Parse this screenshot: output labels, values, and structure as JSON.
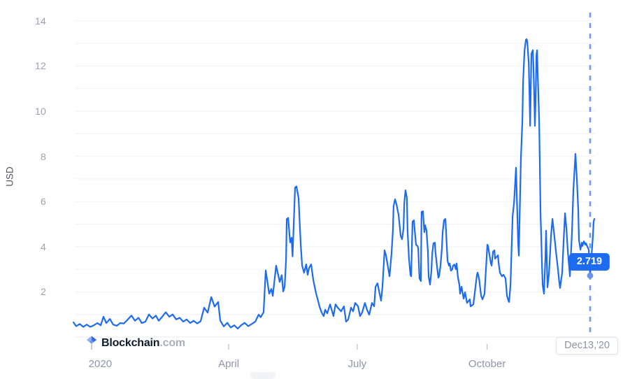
{
  "branding": {
    "brand": "Blockchain",
    "suffix": ".com"
  },
  "colors": {
    "line": "#1d6bf0",
    "tooltip_bg": "#1d6bf0",
    "tooltip_text": "#ffffff",
    "cursor_dashed_line": "#6f9cf3",
    "cursor_dot": "#6c92e8",
    "gridline": "#f1f2f5",
    "axis_line": "#e9ebef",
    "tick_mark": "#c9ccd4",
    "y_tick_text": "#9aa2b2",
    "x_tick_text": "#8d96a8",
    "y_axis_title_text": "#4e5766"
  },
  "chart_data": {
    "type": "line",
    "title": "",
    "ylabel": "USD",
    "xlabel": "",
    "legend": "none",
    "grid": "horizontal gridlines every 1 USD, labels every 2 USD",
    "ylim": [
      0,
      14.4
    ],
    "x_unit": "days since chart start (mid-December 2019); cursor day 366 = Dec 13 2020",
    "xlim_days": [
      0,
      369
    ],
    "y_ticks": [
      2,
      4,
      6,
      8,
      10,
      12,
      14
    ],
    "x_ticks": [
      {
        "label": "2020",
        "day": 19,
        "tick": false
      },
      {
        "label": "April",
        "day": 110,
        "tick": true
      },
      {
        "label": "July",
        "day": 201,
        "tick": true
      },
      {
        "label": "October",
        "day": 293,
        "tick": true
      }
    ],
    "cursor": {
      "day": 366,
      "value": 2.719,
      "value_label": "2.719",
      "date_label": "Dec13,'20"
    },
    "series": [
      {
        "name": "USD",
        "color": "#1d6bf0",
        "points": [
          [
            0,
            0.65
          ],
          [
            2,
            0.48
          ],
          [
            4.5,
            0.58
          ],
          [
            7,
            0.45
          ],
          [
            9.4,
            0.55
          ],
          [
            12,
            0.45
          ],
          [
            14.4,
            0.52
          ],
          [
            17,
            0.62
          ],
          [
            19.3,
            0.52
          ],
          [
            21.3,
            0.9
          ],
          [
            23.3,
            0.62
          ],
          [
            25.8,
            0.8
          ],
          [
            28.2,
            0.55
          ],
          [
            30.7,
            0.5
          ],
          [
            33.2,
            0.62
          ],
          [
            35.7,
            0.6
          ],
          [
            38.1,
            0.75
          ],
          [
            41.1,
            0.95
          ],
          [
            43.6,
            0.72
          ],
          [
            46.1,
            0.85
          ],
          [
            48.5,
            0.62
          ],
          [
            51,
            0.68
          ],
          [
            53.5,
            1.0
          ],
          [
            56,
            0.82
          ],
          [
            58.4,
            0.95
          ],
          [
            60.4,
            0.72
          ],
          [
            62.9,
            0.9
          ],
          [
            65.4,
            1.1
          ],
          [
            67.9,
            0.9
          ],
          [
            70.3,
            1.0
          ],
          [
            72.8,
            0.78
          ],
          [
            75.3,
            0.85
          ],
          [
            77.8,
            0.68
          ],
          [
            80.2,
            0.78
          ],
          [
            82.7,
            0.62
          ],
          [
            85.2,
            0.72
          ],
          [
            87.7,
            0.6
          ],
          [
            90.1,
            0.7
          ],
          [
            92.6,
            1.3
          ],
          [
            95.1,
            1.08
          ],
          [
            97.6,
            1.77
          ],
          [
            100,
            1.35
          ],
          [
            102.5,
            1.55
          ],
          [
            104,
            0.73
          ],
          [
            106.5,
            0.47
          ],
          [
            109,
            0.63
          ],
          [
            111.4,
            0.42
          ],
          [
            113.9,
            0.52
          ],
          [
            116.4,
            0.37
          ],
          [
            118.9,
            0.53
          ],
          [
            121.3,
            0.63
          ],
          [
            123.8,
            0.48
          ],
          [
            126.3,
            0.58
          ],
          [
            128.8,
            0.68
          ],
          [
            131.2,
            0.99
          ],
          [
            132.7,
            0.88
          ],
          [
            134.7,
            1.1
          ],
          [
            136.2,
            2.95
          ],
          [
            138.7,
            1.92
          ],
          [
            140.2,
            2.13
          ],
          [
            141.2,
            1.82
          ],
          [
            143.6,
            3.16
          ],
          [
            145.1,
            2.74
          ],
          [
            146.1,
            2.44
          ],
          [
            147.6,
            2.74
          ],
          [
            148.6,
            2.02
          ],
          [
            149.6,
            2.23
          ],
          [
            150.6,
            3.4
          ],
          [
            151.1,
            5.22
          ],
          [
            152.1,
            5.28
          ],
          [
            153.5,
            4.19
          ],
          [
            154.5,
            4.4
          ],
          [
            155.2,
            3.57
          ],
          [
            157,
            6.62
          ],
          [
            158,
            6.67
          ],
          [
            159.5,
            6.16
          ],
          [
            160.2,
            5.12
          ],
          [
            161,
            4.09
          ],
          [
            162,
            3.16
          ],
          [
            163.4,
            2.85
          ],
          [
            164.9,
            3.22
          ],
          [
            165.9,
            2.76
          ],
          [
            166.9,
            3.06
          ],
          [
            168.4,
            3.22
          ],
          [
            169.9,
            2.54
          ],
          [
            171.9,
            1.92
          ],
          [
            173.3,
            1.61
          ],
          [
            174.3,
            1.36
          ],
          [
            175.8,
            1.08
          ],
          [
            177.3,
            0.93
          ],
          [
            178.3,
            1.21
          ],
          [
            179.8,
            1.05
          ],
          [
            181.8,
            1.45
          ],
          [
            184.2,
            0.93
          ],
          [
            185.7,
            1.45
          ],
          [
            187.2,
            1.3
          ],
          [
            189.6,
            1.14
          ],
          [
            191.6,
            1.36
          ],
          [
            193.1,
            0.68
          ],
          [
            194.6,
            0.77
          ],
          [
            196.6,
            1.3
          ],
          [
            198.1,
            1.14
          ],
          [
            199.6,
            1.51
          ],
          [
            201.6,
            1.36
          ],
          [
            203,
            0.93
          ],
          [
            204.5,
            1.08
          ],
          [
            206.5,
            1.51
          ],
          [
            208,
            1.2
          ],
          [
            209.5,
            0.99
          ],
          [
            211.5,
            1.51
          ],
          [
            213,
            1.36
          ],
          [
            214,
            2.23
          ],
          [
            215.4,
            2.38
          ],
          [
            216.4,
            2.07
          ],
          [
            217.9,
            1.61
          ],
          [
            218.9,
            2.23
          ],
          [
            220.4,
            3.84
          ],
          [
            221.4,
            3.62
          ],
          [
            222.9,
            3.06
          ],
          [
            223.9,
            2.69
          ],
          [
            225.3,
            3.68
          ],
          [
            226.3,
            4.71
          ],
          [
            226.8,
            5.79
          ],
          [
            227.8,
            6.1
          ],
          [
            228.8,
            5.88
          ],
          [
            230.3,
            5.42
          ],
          [
            231.8,
            4.49
          ],
          [
            232.8,
            4.33
          ],
          [
            233.8,
            4.8
          ],
          [
            234.3,
            5.88
          ],
          [
            235.2,
            6.5
          ],
          [
            236.2,
            6.16
          ],
          [
            236.7,
            4.71
          ],
          [
            237.7,
            3.47
          ],
          [
            238.7,
            2.76
          ],
          [
            239.2,
            2.69
          ],
          [
            240.2,
            5.11
          ],
          [
            241.2,
            5.17
          ],
          [
            241.7,
            4.77
          ],
          [
            242.7,
            4.09
          ],
          [
            243.7,
            4.03
          ],
          [
            244.2,
            3.93
          ],
          [
            245.1,
            2.6
          ],
          [
            246.1,
            2.48
          ],
          [
            246.6,
            5.54
          ],
          [
            247.6,
            5.57
          ],
          [
            248.6,
            4.64
          ],
          [
            249.1,
            4.95
          ],
          [
            250.1,
            4.71
          ],
          [
            251.1,
            3.78
          ],
          [
            251.6,
            2.69
          ],
          [
            252.6,
            2.32
          ],
          [
            253.6,
            2.94
          ],
          [
            254.1,
            3.68
          ],
          [
            255,
            4.15
          ],
          [
            256,
            4.18
          ],
          [
            256.5,
            3.72
          ],
          [
            257.5,
            3.16
          ],
          [
            258.5,
            2.63
          ],
          [
            259,
            2.69
          ],
          [
            260,
            3.16
          ],
          [
            261,
            3.93
          ],
          [
            261.5,
            4.61
          ],
          [
            262.5,
            5.17
          ],
          [
            263.5,
            5.23
          ],
          [
            264,
            4.64
          ],
          [
            265,
            3.37
          ],
          [
            266,
            3.16
          ],
          [
            266.5,
            3.26
          ],
          [
            267.4,
            2.94
          ],
          [
            268.4,
            3.0
          ],
          [
            268.9,
            3.16
          ],
          [
            269.9,
            3.21
          ],
          [
            270.9,
            3.0
          ],
          [
            271.4,
            3.26
          ],
          [
            272.4,
            2.63
          ],
          [
            273.4,
            2.32
          ],
          [
            273.9,
            1.92
          ],
          [
            274.9,
            2.23
          ],
          [
            276.4,
            1.7
          ],
          [
            277.4,
            1.98
          ],
          [
            278.8,
            1.51
          ],
          [
            280.8,
            1.67
          ],
          [
            281.3,
            1.36
          ],
          [
            283.3,
            1.45
          ],
          [
            283.8,
            1.7
          ],
          [
            285.8,
            2.76
          ],
          [
            286.3,
            2.85
          ],
          [
            287.3,
            2.6
          ],
          [
            288.8,
            1.82
          ],
          [
            289.8,
            1.67
          ],
          [
            291.2,
            1.92
          ],
          [
            293.2,
            4.09
          ],
          [
            293.7,
            4.03
          ],
          [
            295.7,
            3.26
          ],
          [
            296.2,
            3.16
          ],
          [
            297.2,
            3.78
          ],
          [
            298.2,
            3.84
          ],
          [
            298.7,
            3.47
          ],
          [
            300.7,
            3.62
          ],
          [
            301.2,
            3.26
          ],
          [
            302.1,
            2.85
          ],
          [
            303.6,
            2.69
          ],
          [
            304.6,
            2.76
          ],
          [
            306.1,
            2.6
          ],
          [
            307.1,
            1.82
          ],
          [
            308.1,
            1.61
          ],
          [
            308.6,
            1.55
          ],
          [
            309.6,
            2.32
          ],
          [
            311.1,
            5.33
          ],
          [
            312.1,
            5.95
          ],
          [
            313.5,
            7.5
          ],
          [
            315,
            4.2
          ],
          [
            315.5,
            3.6
          ],
          [
            316.5,
            6.5
          ],
          [
            317,
            8.0
          ],
          [
            318,
            9.57
          ],
          [
            318.5,
            11.3
          ],
          [
            319.5,
            12.66
          ],
          [
            320.5,
            13.16
          ],
          [
            321,
            13.19
          ],
          [
            321.5,
            13.07
          ],
          [
            322.5,
            12.14
          ],
          [
            323,
            10.8
          ],
          [
            323.5,
            9.35
          ],
          [
            324.4,
            12.54
          ],
          [
            325.4,
            12.7
          ],
          [
            325.9,
            11.92
          ],
          [
            326.4,
            10.68
          ],
          [
            326.9,
            9.35
          ],
          [
            327.4,
            10.59
          ],
          [
            327.9,
            12.45
          ],
          [
            328.4,
            12.7
          ],
          [
            328.9,
            11.61
          ],
          [
            329.9,
            9.57
          ],
          [
            330.4,
            7.49
          ],
          [
            330.9,
            5.42
          ],
          [
            331.4,
            4.4
          ],
          [
            331.9,
            3.2
          ],
          [
            332.4,
            2.3
          ],
          [
            333.3,
            1.92
          ],
          [
            334.3,
            3.5
          ],
          [
            334.8,
            4.71
          ],
          [
            335.8,
            2.2
          ],
          [
            336.8,
            2.76
          ],
          [
            337.3,
            3.3
          ],
          [
            338.3,
            4.5
          ],
          [
            339.3,
            5.23
          ],
          [
            340.8,
            4.4
          ],
          [
            341.8,
            3.78
          ],
          [
            343.2,
            3.0
          ],
          [
            344.2,
            2.4
          ],
          [
            344.7,
            2.17
          ],
          [
            346.2,
            2.85
          ],
          [
            347.2,
            4.2
          ],
          [
            348.2,
            5.48
          ],
          [
            349.2,
            4.8
          ],
          [
            350.2,
            3.78
          ],
          [
            351.7,
            2.69
          ],
          [
            353.2,
            4.71
          ],
          [
            354.1,
            6.5
          ],
          [
            355.6,
            8.11
          ],
          [
            356.6,
            7.0
          ],
          [
            357.6,
            5.64
          ],
          [
            358.1,
            4.3
          ],
          [
            359.1,
            3.87
          ],
          [
            360.1,
            4.18
          ],
          [
            360.6,
            4.03
          ],
          [
            361.6,
            4.24
          ],
          [
            362.6,
            4.09
          ],
          [
            363.1,
            4.15
          ],
          [
            364.1,
            3.99
          ],
          [
            365,
            3.87
          ],
          [
            365.5,
            3.2
          ],
          [
            366,
            2.719
          ],
          [
            367,
            3.6
          ],
          [
            368,
            4.49
          ],
          [
            368.5,
            5.11
          ],
          [
            369,
            5.23
          ]
        ]
      }
    ]
  }
}
